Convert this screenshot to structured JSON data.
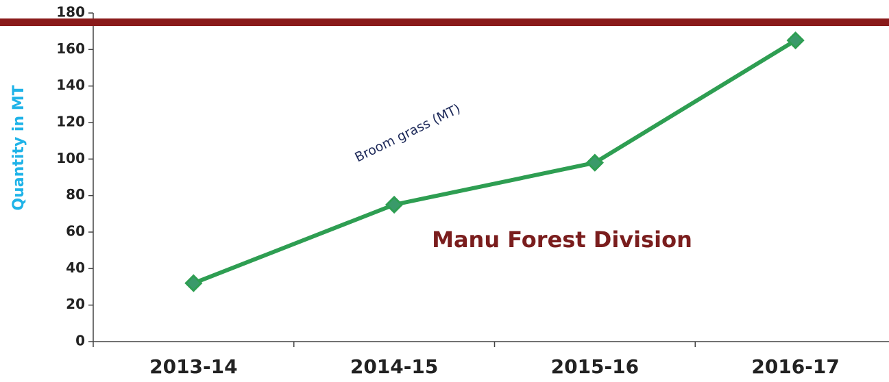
{
  "chart_data": {
    "type": "line",
    "y_label": "Quantity in MT",
    "annotation": "Manu Forest Division",
    "categories": [
      "2013-14",
      "2014-15",
      "2015-16",
      "2016-17"
    ],
    "series": [
      {
        "name": "Broom grass (MT)",
        "color": "#2e9e52",
        "values": [
          32,
          75,
          98,
          165
        ]
      }
    ],
    "ylim": [
      0,
      180
    ],
    "yticks": [
      0,
      20,
      40,
      60,
      80,
      100,
      120,
      140,
      160,
      180
    ]
  }
}
